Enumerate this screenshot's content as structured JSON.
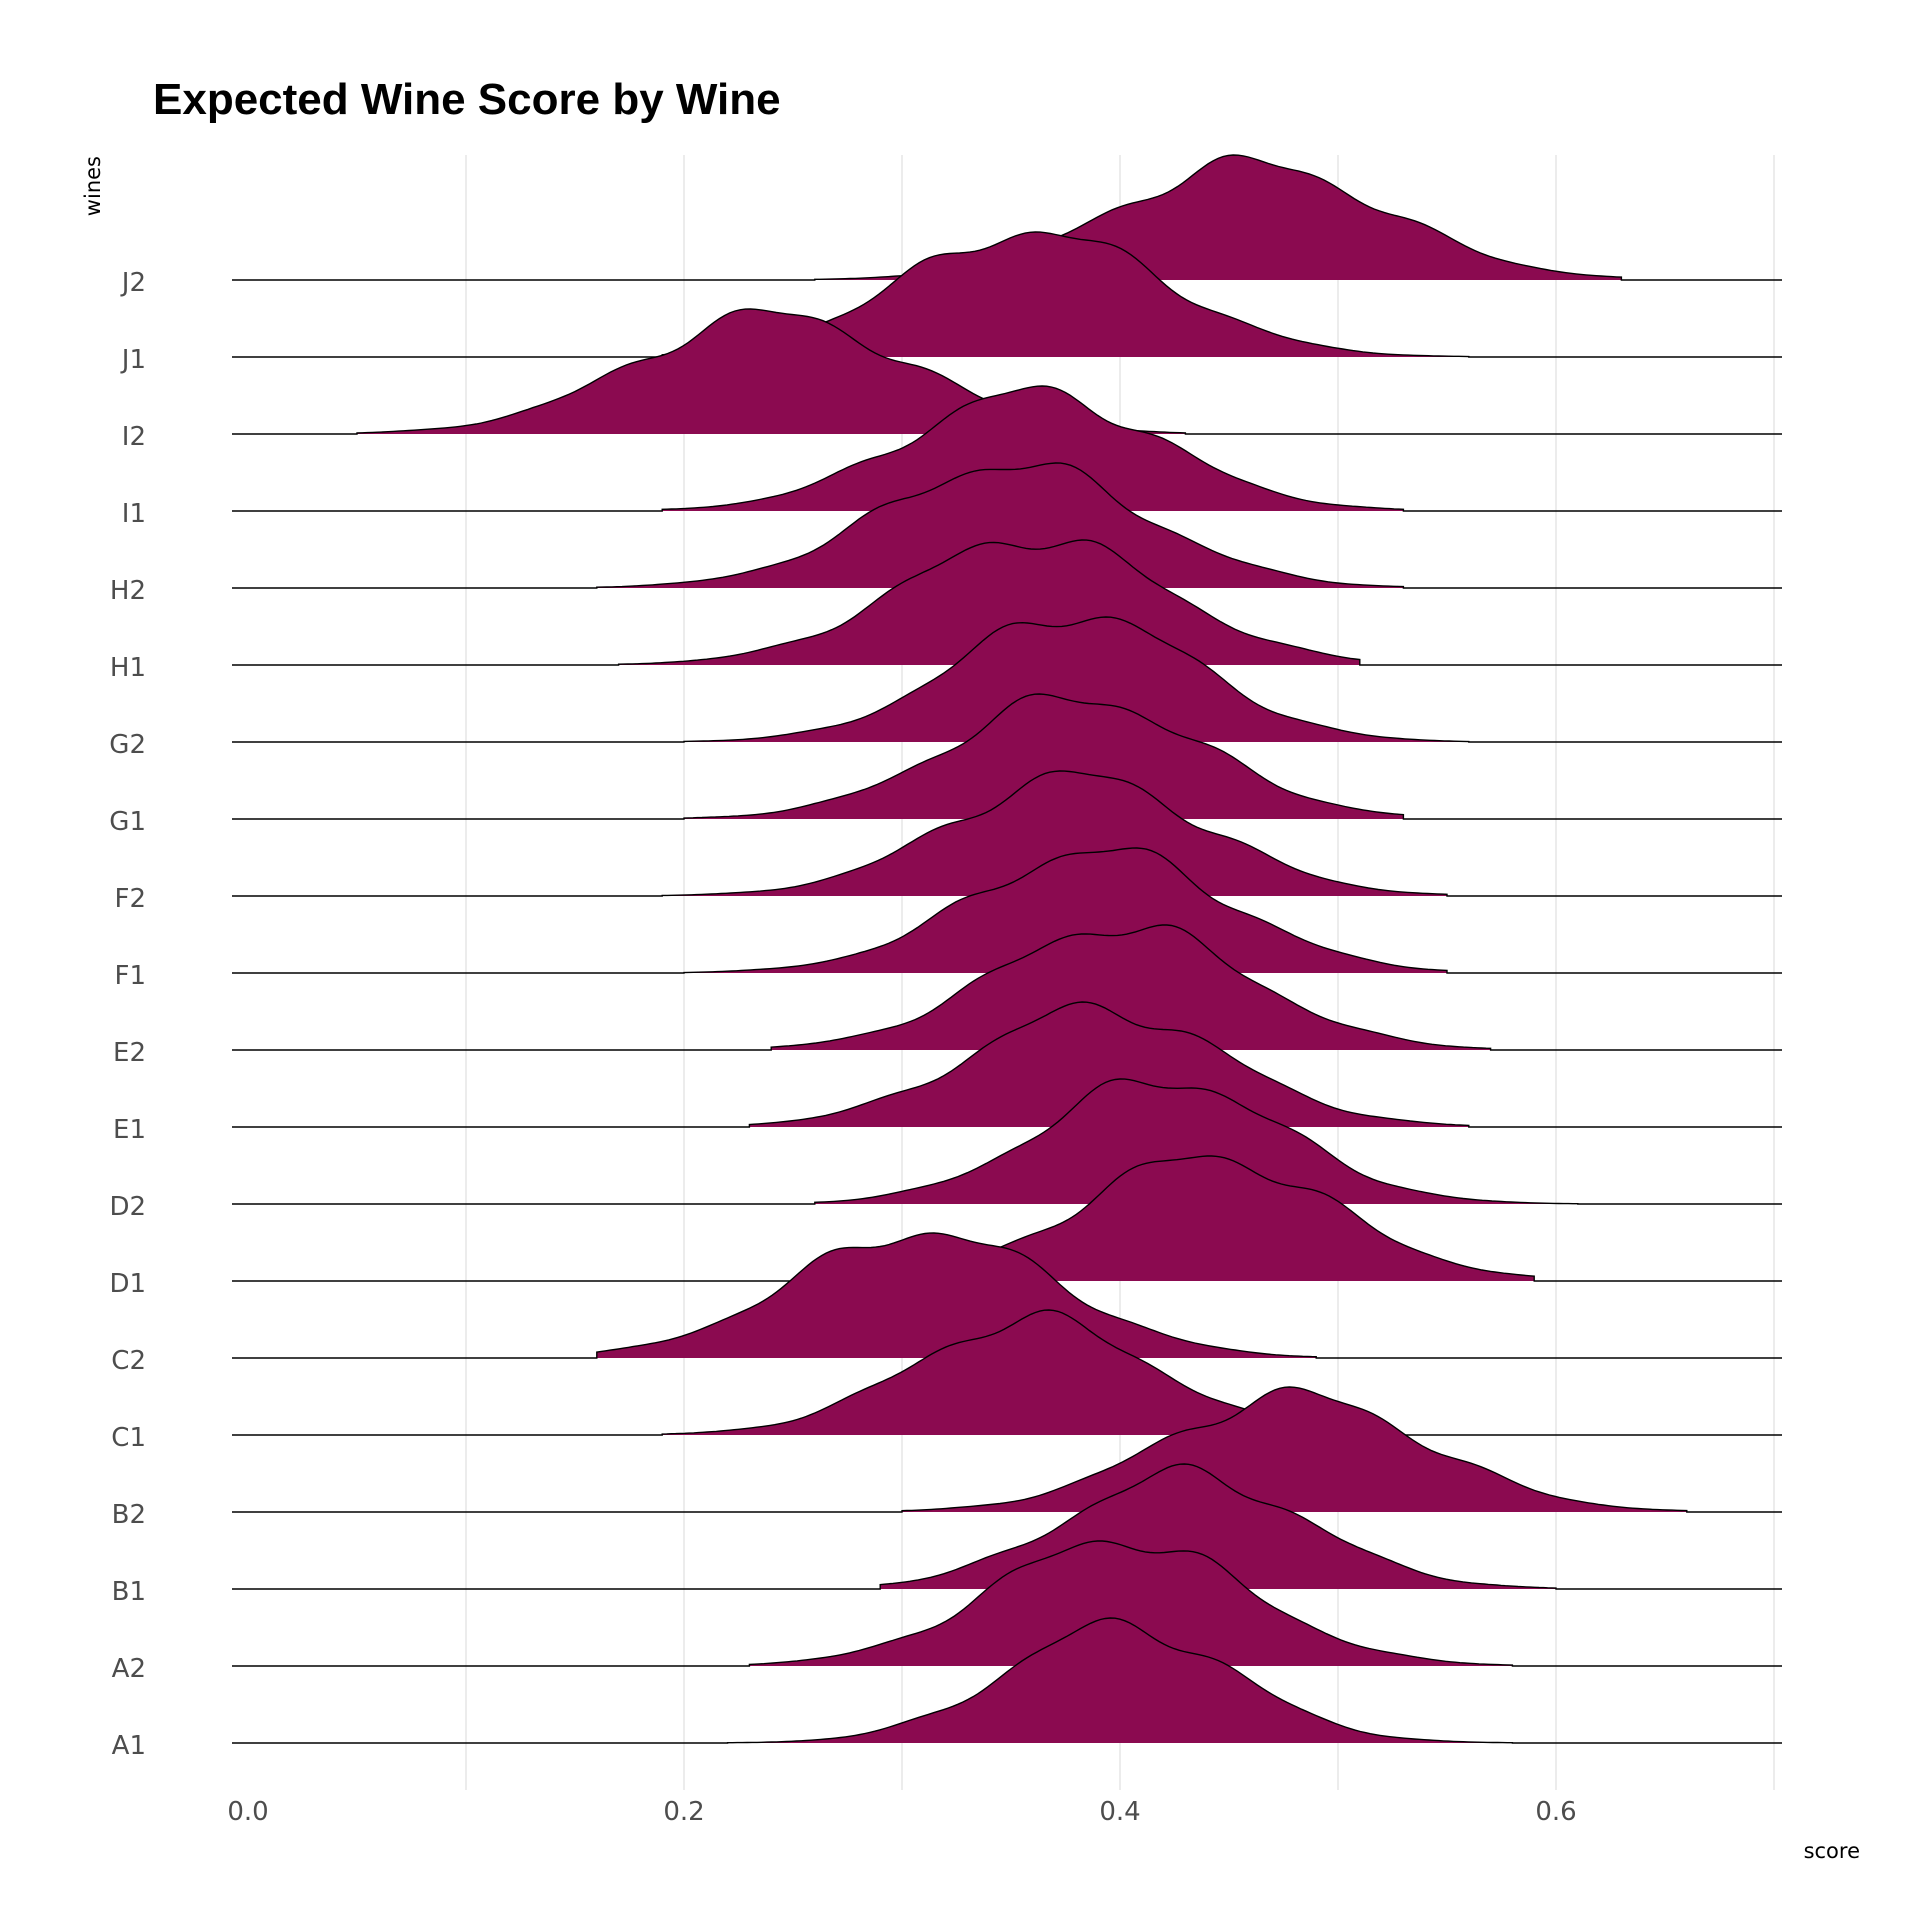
{
  "chart_data": {
    "type": "area",
    "subtype": "ridgeline-density",
    "title": "Expected Wine Score by Wine",
    "xlabel": "score",
    "ylabel": "wines",
    "fill_color": "#8B0A50",
    "line_color": "#000000",
    "grid": true,
    "xlim": [
      -0.02,
      0.7
    ],
    "x_ticks": [
      0.0,
      0.2,
      0.4,
      0.6
    ],
    "x_tick_labels": [
      "0.0",
      "0.2",
      "0.4",
      "0.6"
    ],
    "categories": [
      "A1",
      "A2",
      "B1",
      "B2",
      "C1",
      "C2",
      "D1",
      "D2",
      "E1",
      "E2",
      "F1",
      "F2",
      "G1",
      "G2",
      "H1",
      "H2",
      "I1",
      "I2",
      "J1",
      "J2"
    ],
    "series": [
      {
        "name": "A1",
        "values": {
          "mode": 0.4,
          "sd": 0.052,
          "min": 0.22,
          "max": 0.58
        }
      },
      {
        "name": "A2",
        "values": {
          "mode": 0.4,
          "sd": 0.058,
          "min": 0.23,
          "max": 0.58
        }
      },
      {
        "name": "B1",
        "values": {
          "mode": 0.43,
          "sd": 0.055,
          "min": 0.29,
          "max": 0.6
        }
      },
      {
        "name": "B2",
        "values": {
          "mode": 0.48,
          "sd": 0.06,
          "min": 0.3,
          "max": 0.66
        }
      },
      {
        "name": "C1",
        "values": {
          "mode": 0.36,
          "sd": 0.055,
          "min": 0.19,
          "max": 0.52
        }
      },
      {
        "name": "C2",
        "values": {
          "mode": 0.31,
          "sd": 0.06,
          "min": 0.16,
          "max": 0.49
        }
      },
      {
        "name": "D1",
        "values": {
          "mode": 0.44,
          "sd": 0.058,
          "min": 0.27,
          "max": 0.59
        }
      },
      {
        "name": "D2",
        "values": {
          "mode": 0.42,
          "sd": 0.055,
          "min": 0.26,
          "max": 0.61
        }
      },
      {
        "name": "E1",
        "values": {
          "mode": 0.39,
          "sd": 0.058,
          "min": 0.23,
          "max": 0.56
        }
      },
      {
        "name": "E2",
        "values": {
          "mode": 0.4,
          "sd": 0.058,
          "min": 0.24,
          "max": 0.57
        }
      },
      {
        "name": "F1",
        "values": {
          "mode": 0.39,
          "sd": 0.058,
          "min": 0.2,
          "max": 0.55
        }
      },
      {
        "name": "F2",
        "values": {
          "mode": 0.38,
          "sd": 0.058,
          "min": 0.19,
          "max": 0.55
        }
      },
      {
        "name": "G1",
        "values": {
          "mode": 0.38,
          "sd": 0.058,
          "min": 0.2,
          "max": 0.53
        }
      },
      {
        "name": "G2",
        "values": {
          "mode": 0.38,
          "sd": 0.055,
          "min": 0.2,
          "max": 0.56
        }
      },
      {
        "name": "H1",
        "values": {
          "mode": 0.36,
          "sd": 0.06,
          "min": 0.17,
          "max": 0.51
        }
      },
      {
        "name": "H2",
        "values": {
          "mode": 0.35,
          "sd": 0.06,
          "min": 0.16,
          "max": 0.53
        }
      },
      {
        "name": "I1",
        "values": {
          "mode": 0.36,
          "sd": 0.058,
          "min": 0.19,
          "max": 0.53
        }
      },
      {
        "name": "I2",
        "values": {
          "mode": 0.24,
          "sd": 0.062,
          "min": 0.05,
          "max": 0.43
        }
      },
      {
        "name": "J1",
        "values": {
          "mode": 0.36,
          "sd": 0.06,
          "min": 0.19,
          "max": 0.56
        }
      },
      {
        "name": "J2",
        "values": {
          "mode": 0.46,
          "sd": 0.062,
          "min": 0.26,
          "max": 0.63
        }
      }
    ]
  }
}
